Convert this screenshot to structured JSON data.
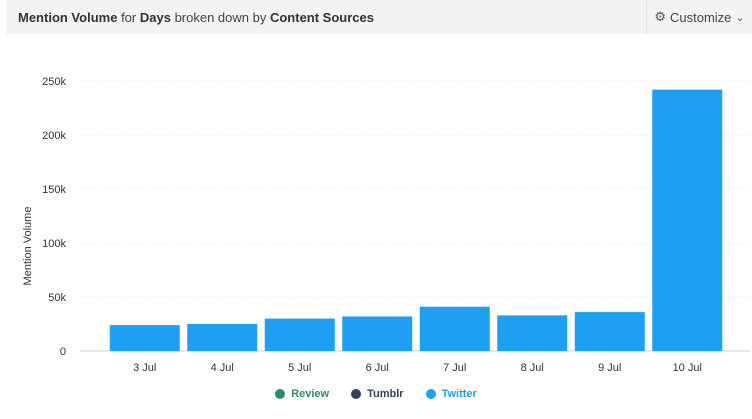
{
  "header": {
    "title_metric": "Mention Volume",
    "title_for": "for",
    "title_period": "Days",
    "title_broken": "broken down by",
    "title_dimension": "Content Sources",
    "customize_label": "Customize",
    "customize_icon": "gear-icon",
    "customize_chevron": "chevron-down-icon"
  },
  "chart_data": {
    "type": "bar",
    "ylabel": "Mention Volume",
    "xlabel": "",
    "categories": [
      "3 Jul",
      "4 Jul",
      "5 Jul",
      "6 Jul",
      "7 Jul",
      "8 Jul",
      "9 Jul",
      "10 Jul"
    ],
    "series": [
      {
        "name": "Twitter",
        "color": "#1e9ff2",
        "values": [
          24000,
          25000,
          30000,
          32000,
          41000,
          33000,
          36000,
          242000
        ]
      }
    ],
    "ylim": [
      0,
      250000
    ],
    "yticks": [
      0,
      50000,
      100000,
      150000,
      200000,
      250000
    ],
    "ytick_labels": [
      "0",
      "50k",
      "100k",
      "150k",
      "200k",
      "250k"
    ],
    "grid": true,
    "legend_position": "bottom-center"
  },
  "legend": [
    {
      "name": "Review",
      "color": "#2e8b6a"
    },
    {
      "name": "Tumblr",
      "color": "#34405a"
    },
    {
      "name": "Twitter",
      "color": "#1e9ff2"
    }
  ]
}
